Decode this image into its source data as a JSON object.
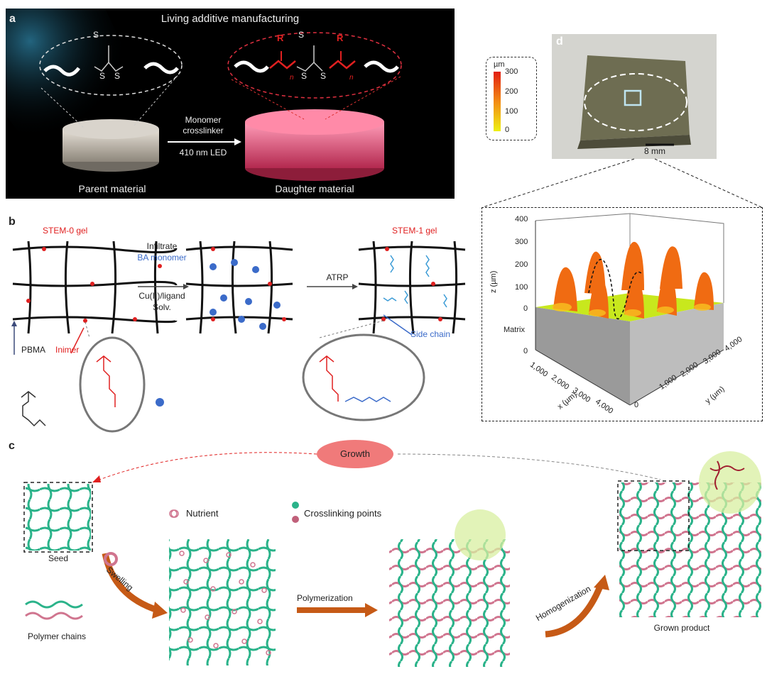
{
  "panel_a": {
    "letter": "a",
    "title": "Living additive manufacturing",
    "arrow_label_1": "Monomer",
    "arrow_label_2": "crosslinker",
    "arrow_label_3": "410 nm LED",
    "parent": "Parent material",
    "daughter": "Daughter material",
    "atom_s": "S",
    "atom_r": "R",
    "subscript_n": "n"
  },
  "panel_b": {
    "letter": "b",
    "stem0": "STEM-0 gel",
    "stem1": "STEM-1 gel",
    "infiltrate": "Infiltrate",
    "ba_monomer": "BA monomer",
    "cu": "Cu(II)/ligand",
    "solv": "Solv.",
    "atrp": "ATRP",
    "pbma": "PBMA",
    "inimer": "Inimer",
    "side_chain": "Side chain"
  },
  "panel_c": {
    "letter": "c",
    "growth": "Growth",
    "seed": "Seed",
    "nutrient": "Nutrient",
    "crosslinking": "Crosslinking points",
    "swelling": "Swelling",
    "polymerization": "Polymerization",
    "homogenization": "Homogenization",
    "grown": "Grown product",
    "polymer_chains": "Polymer chains"
  },
  "panel_d": {
    "letter": "d",
    "colorbar_unit": "µm",
    "colorbar_ticks": [
      "300",
      "200",
      "100",
      "0"
    ],
    "scale_bar": "8 mm",
    "z_label": "z (µm)",
    "z_ticks": [
      "400",
      "300",
      "200",
      "100",
      "0"
    ],
    "matrix": "Matrix",
    "x_label": "x (µm)",
    "x_ticks": [
      "0",
      "1,000",
      "2,000",
      "3,000",
      "4,000"
    ],
    "y_label": "y (µm)",
    "y_ticks": [
      "0",
      "1,000",
      "2,000",
      "3,000",
      "4,000"
    ]
  },
  "colors": {
    "green": "#2bb38a",
    "pink": "#d0758f",
    "red": "#e02020",
    "blue": "#3b6bc9",
    "orange": "#c65a16"
  }
}
